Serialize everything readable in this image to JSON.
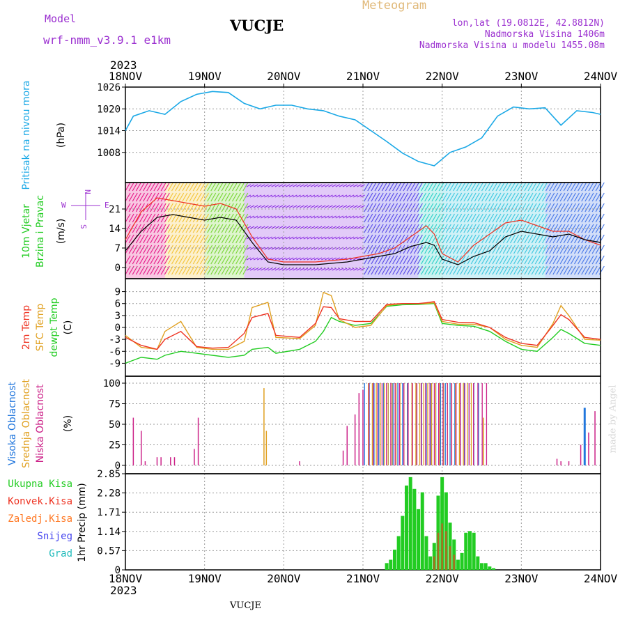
{
  "header": {
    "model_label": "Model",
    "model_name": "wrf-nmm_v3.9.1 e1km",
    "location": "VUCJE",
    "title": "Meteogram",
    "lonlat": "lon,lat (19.0812E, 42.8812N)",
    "altitude": "Nadmorska Visina 1406m",
    "model_altitude": "Nadmorska Visina u modelu 1455.08m",
    "footer_location": "VUCJE",
    "credit": "made by Angel",
    "year": "2023"
  },
  "colors": {
    "pressure": "#1aa8e6",
    "temp2m": "#ee3322",
    "sfc": "#e0a020",
    "dewpt": "#22cc22",
    "cloud_high": "#2277dd",
    "cloud_mid": "#e0a020",
    "cloud_low": "#cc2288",
    "precip_total": "#22cc22",
    "precip_conv": "#ee3322",
    "precip_frz": "#ff7722",
    "snow": "#4444ee",
    "hail": "#22bbbb",
    "wind_black": "#000000",
    "axis_purple": "#9b30d0"
  },
  "chart_data": [
    {
      "id": "pressure",
      "type": "line",
      "ylabel_lines": [
        "Pritisak na nivou mora",
        "(hPa)"
      ],
      "yticks": [
        "1008",
        "1014",
        "1020",
        "1026"
      ],
      "ylim": [
        1002,
        1026
      ],
      "xticks": [
        "18NOV",
        "19NOV",
        "20NOV",
        "21NOV",
        "22NOV",
        "23NOV",
        "24NOV"
      ],
      "x_days": [
        0,
        0.1,
        0.3,
        0.5,
        0.7,
        0.9,
        1.1,
        1.3,
        1.5,
        1.7,
        1.9,
        2.1,
        2.3,
        2.5,
        2.7,
        2.9,
        3.1,
        3.3,
        3.5,
        3.7,
        3.9,
        4.1,
        4.3,
        4.5,
        4.7,
        4.9,
        5.1,
        5.3,
        5.5,
        5.7,
        5.9,
        6.0
      ],
      "values": [
        1014,
        1018,
        1019.5,
        1018.5,
        1022,
        1024,
        1024.8,
        1024.5,
        1021.5,
        1020,
        1021,
        1021,
        1020,
        1019.5,
        1018,
        1017,
        1014,
        1011,
        1007.8,
        1005.5,
        1004.3,
        1008,
        1009.5,
        1012,
        1018,
        1020.5,
        1020,
        1020.3,
        1015.5,
        1019.5,
        1019,
        1018.5
      ]
    },
    {
      "id": "wind",
      "type": "line",
      "ylabel_lines": [
        "10m Vjetar",
        "Brzina i Pravac",
        "(m/s)"
      ],
      "compass": {
        "n": "N",
        "s": "S",
        "w": "W",
        "e": "E"
      },
      "yticks": [
        "0",
        "7",
        "14",
        "21"
      ],
      "ylim": [
        -2,
        28
      ],
      "x_days": [
        0,
        0.2,
        0.4,
        0.6,
        0.8,
        1.0,
        1.2,
        1.4,
        1.6,
        1.8,
        2.0,
        2.2,
        2.4,
        2.6,
        2.8,
        3.0,
        3.2,
        3.4,
        3.6,
        3.8,
        3.9,
        4.0,
        4.2,
        4.4,
        4.6,
        4.8,
        5.0,
        5.2,
        5.4,
        5.6,
        5.8,
        6.0
      ],
      "series": [
        {
          "name": "black",
          "values": [
            6,
            13,
            18,
            19,
            18,
            17,
            18,
            17,
            9,
            2,
            1,
            1,
            1,
            1.5,
            2,
            3,
            4,
            5,
            7.5,
            9,
            8,
            3,
            1,
            4,
            6,
            11,
            13,
            12,
            11,
            12,
            10,
            9
          ]
        },
        {
          "name": "red",
          "values": [
            10,
            20,
            25,
            24,
            23,
            22,
            23,
            21,
            11,
            3,
            2,
            2,
            2,
            2.5,
            3,
            4,
            5,
            7,
            11,
            15,
            12,
            5,
            2,
            8,
            12,
            16,
            17,
            15,
            13,
            13,
            10,
            8
          ]
        }
      ]
    },
    {
      "id": "temperature",
      "type": "line",
      "ylabel_lines": [
        "2m Temp",
        "SFC Temp",
        "dewpt Temp",
        "(C)"
      ],
      "yticks": [
        "-9",
        "-6",
        "-3",
        "0",
        "3",
        "6",
        "9"
      ],
      "ylim": [
        -10.5,
        10.5
      ],
      "x_days": [
        0,
        0.2,
        0.4,
        0.5,
        0.7,
        0.9,
        1.1,
        1.3,
        1.5,
        1.6,
        1.8,
        1.9,
        2.2,
        2.4,
        2.5,
        2.6,
        2.7,
        2.9,
        3.1,
        3.3,
        3.5,
        3.7,
        3.8,
        3.9,
        4.0,
        4.2,
        4.4,
        4.6,
        4.8,
        5.0,
        5.2,
        5.4,
        5.5,
        5.6,
        5.8,
        6.0
      ],
      "series": [
        {
          "name": "2m",
          "values": [
            -2.5,
            -4.5,
            -5.5,
            -3.0,
            -1.0,
            -4.8,
            -5.2,
            -5.0,
            -1.5,
            2.5,
            3.5,
            -2.0,
            -2.5,
            1.0,
            5.2,
            5.0,
            2.2,
            1.5,
            1.5,
            5.8,
            6.0,
            6.0,
            6.2,
            6.5,
            2.0,
            1.3,
            1.2,
            0.0,
            -2.5,
            -4.0,
            -4.5,
            0.5,
            3.2,
            2.0,
            -2.5,
            -3.0
          ]
        },
        {
          "name": "sfc",
          "values": [
            -2.0,
            -5.0,
            -5.5,
            -1.0,
            1.5,
            -5.0,
            -5.5,
            -5.5,
            -3.5,
            5.0,
            6.3,
            -2.5,
            -2.8,
            0.5,
            8.8,
            8.0,
            2.0,
            0.0,
            0.5,
            5.5,
            6.0,
            6.0,
            6.0,
            6.2,
            1.5,
            0.8,
            0.8,
            0.0,
            -3.0,
            -4.5,
            -5.0,
            1.0,
            5.5,
            3.0,
            -3.0,
            -3.2
          ]
        },
        {
          "name": "dewpt",
          "values": [
            -9.0,
            -7.5,
            -8.0,
            -7.0,
            -6.0,
            -6.5,
            -7.0,
            -7.5,
            -7.0,
            -5.5,
            -5.0,
            -6.5,
            -5.5,
            -3.5,
            -1.0,
            2.5,
            1.5,
            0.5,
            1.0,
            5.3,
            5.7,
            5.8,
            5.9,
            6.0,
            1.0,
            0.5,
            0.3,
            -1.0,
            -3.5,
            -5.5,
            -6.0,
            -2.5,
            -0.5,
            -1.5,
            -4.0,
            -4.5
          ]
        }
      ]
    },
    {
      "id": "cloud",
      "type": "bar",
      "ylabel_lines": [
        "Visoka Oblacnost",
        "Srednja Oblacnost",
        "Niska Oblacnost",
        "(%)"
      ],
      "yticks": [
        "0",
        "25",
        "50",
        "75",
        "100"
      ],
      "ylim": [
        0,
        100
      ],
      "bands": [
        {
          "name": "high",
          "x_from": 3.02,
          "x_to": 4.5,
          "value": 100
        },
        {
          "name": "mid",
          "x_from": 3.05,
          "x_to": 4.4,
          "value": 100
        },
        {
          "name": "low",
          "x_from": 3.04,
          "x_to": 4.6,
          "value": 100
        }
      ],
      "low_bars": {
        "x": [
          0.1,
          0.2,
          0.25,
          0.4,
          0.45,
          0.57,
          0.62,
          0.87,
          0.92,
          2.2,
          2.75,
          2.8,
          2.9,
          2.95,
          3.0,
          5.45,
          5.5,
          5.6,
          5.75,
          5.85,
          5.93
        ],
        "values": [
          58,
          42,
          5,
          10,
          10,
          10,
          10,
          20,
          58,
          5,
          18,
          48,
          62,
          88,
          92,
          8,
          5,
          5,
          25,
          40,
          66
        ]
      },
      "mid_bars": {
        "x": [
          1.75,
          1.78,
          4.52
        ],
        "values": [
          94,
          42,
          58
        ]
      },
      "high_bars": {
        "x": [
          5.8
        ],
        "values": [
          70
        ]
      }
    },
    {
      "id": "precip",
      "type": "bar",
      "ylabel_lines": [
        "1hr Precip (mm)"
      ],
      "legend": [
        "Ukupna Kisa",
        "Konvek.Kisa",
        "Zaledj.Kisa",
        "Snijeg",
        "Grad"
      ],
      "yticks": [
        "0",
        "0.57",
        "1.14",
        "1.71",
        "2.28",
        "2.85"
      ],
      "ylim": [
        0,
        2.85
      ],
      "x_days": [
        3.3,
        3.35,
        3.4,
        3.45,
        3.5,
        3.55,
        3.6,
        3.65,
        3.7,
        3.75,
        3.8,
        3.85,
        3.9,
        3.95,
        4.0,
        4.05,
        4.1,
        4.15,
        4.2,
        4.25,
        4.3,
        4.35,
        4.4,
        4.45,
        4.5,
        4.55,
        4.6,
        4.65
      ],
      "values": [
        0.2,
        0.3,
        0.6,
        1.0,
        1.6,
        2.5,
        2.75,
        2.4,
        1.8,
        2.3,
        1.0,
        0.4,
        0.8,
        2.2,
        2.75,
        2.3,
        1.4,
        0.9,
        0.3,
        0.5,
        1.1,
        1.15,
        1.1,
        0.4,
        0.2,
        0.2,
        0.1,
        0.05
      ]
    }
  ]
}
